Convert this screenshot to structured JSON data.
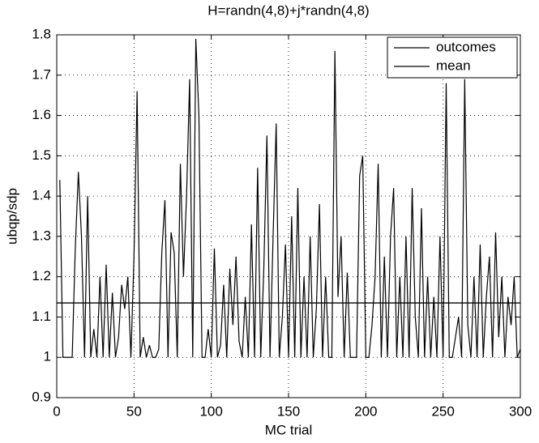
{
  "chart_data": {
    "type": "line",
    "title": "H=randn(4,8)+j*randn(4,8)",
    "x_label": "MC trial",
    "y_label": "ubqp/sdp",
    "x": [
      2,
      4,
      6,
      8,
      10,
      12,
      14,
      16,
      18,
      20,
      22,
      24,
      26,
      28,
      30,
      32,
      34,
      36,
      38,
      40,
      42,
      44,
      46,
      48,
      50,
      52,
      54,
      56,
      58,
      60,
      62,
      64,
      66,
      68,
      70,
      72,
      74,
      76,
      78,
      80,
      82,
      84,
      86,
      88,
      90,
      92,
      94,
      96,
      98,
      100,
      102,
      104,
      106,
      108,
      110,
      112,
      114,
      116,
      118,
      120,
      122,
      124,
      126,
      128,
      130,
      132,
      134,
      136,
      138,
      140,
      142,
      144,
      146,
      148,
      150,
      152,
      154,
      156,
      158,
      160,
      162,
      164,
      166,
      168,
      170,
      172,
      174,
      176,
      178,
      180,
      182,
      184,
      186,
      188,
      190,
      192,
      194,
      196,
      198,
      200,
      202,
      204,
      206,
      208,
      210,
      212,
      214,
      216,
      218,
      220,
      222,
      224,
      226,
      228,
      230,
      232,
      234,
      236,
      238,
      240,
      242,
      244,
      246,
      248,
      250,
      252,
      254,
      256,
      258,
      260,
      262,
      264,
      266,
      268,
      270,
      272,
      274,
      276,
      278,
      280,
      282,
      284,
      286,
      288,
      290,
      292,
      294,
      296,
      298,
      300
    ],
    "series": [
      {
        "name": "outcomes",
        "color": "#000000",
        "values": [
          1.44,
          1.0,
          1.0,
          1.0,
          1.0,
          1.27,
          1.46,
          1.3,
          1.0,
          1.4,
          1.0,
          1.07,
          1.0,
          1.2,
          1.0,
          1.23,
          1.0,
          1.16,
          1.0,
          1.05,
          1.18,
          1.12,
          1.2,
          1.0,
          1.25,
          1.66,
          1.0,
          1.05,
          1.0,
          1.03,
          1.0,
          1.0,
          1.02,
          1.26,
          1.39,
          1.0,
          1.31,
          1.26,
          1.0,
          1.48,
          1.2,
          1.4,
          1.69,
          1.0,
          1.79,
          1.6,
          1.0,
          1.0,
          1.07,
          1.0,
          1.27,
          1.0,
          1.03,
          1.18,
          1.0,
          1.22,
          1.08,
          1.25,
          1.04,
          1.0,
          1.15,
          1.0,
          1.33,
          1.0,
          1.47,
          1.0,
          1.22,
          1.55,
          1.0,
          1.3,
          1.58,
          1.0,
          1.1,
          1.28,
          1.0,
          1.35,
          1.0,
          1.42,
          1.0,
          1.2,
          1.0,
          1.3,
          1.0,
          1.12,
          1.38,
          1.0,
          1.2,
          1.0,
          1.0,
          1.76,
          1.15,
          1.3,
          1.0,
          1.21,
          1.0,
          1.0,
          1.0,
          1.45,
          1.5,
          1.0,
          1.0,
          1.08,
          1.2,
          1.48,
          1.0,
          1.25,
          1.0,
          1.3,
          1.42,
          1.0,
          1.2,
          1.0,
          1.3,
          1.0,
          1.42,
          1.1,
          1.0,
          1.37,
          1.0,
          1.2,
          1.0,
          1.15,
          1.0,
          1.3,
          1.0,
          1.68,
          1.0,
          1.0,
          1.05,
          1.1,
          1.0,
          1.69,
          1.08,
          1.0,
          1.2,
          1.0,
          1.28,
          1.0,
          1.15,
          1.25,
          1.0,
          1.31,
          1.05,
          1.2,
          1.0,
          1.15,
          1.08,
          1.2,
          1.0,
          1.02
        ]
      },
      {
        "name": "mean",
        "color": "#000000",
        "value": 1.135
      }
    ],
    "xlim": [
      0,
      300
    ],
    "xticks": [
      0,
      50,
      100,
      150,
      200,
      250,
      300
    ],
    "ylim": [
      0.9,
      1.8
    ],
    "yticks": [
      0.9,
      1,
      1.1,
      1.2,
      1.3,
      1.4,
      1.5,
      1.6,
      1.7,
      1.8
    ],
    "grid": true,
    "legend": "northeast"
  }
}
